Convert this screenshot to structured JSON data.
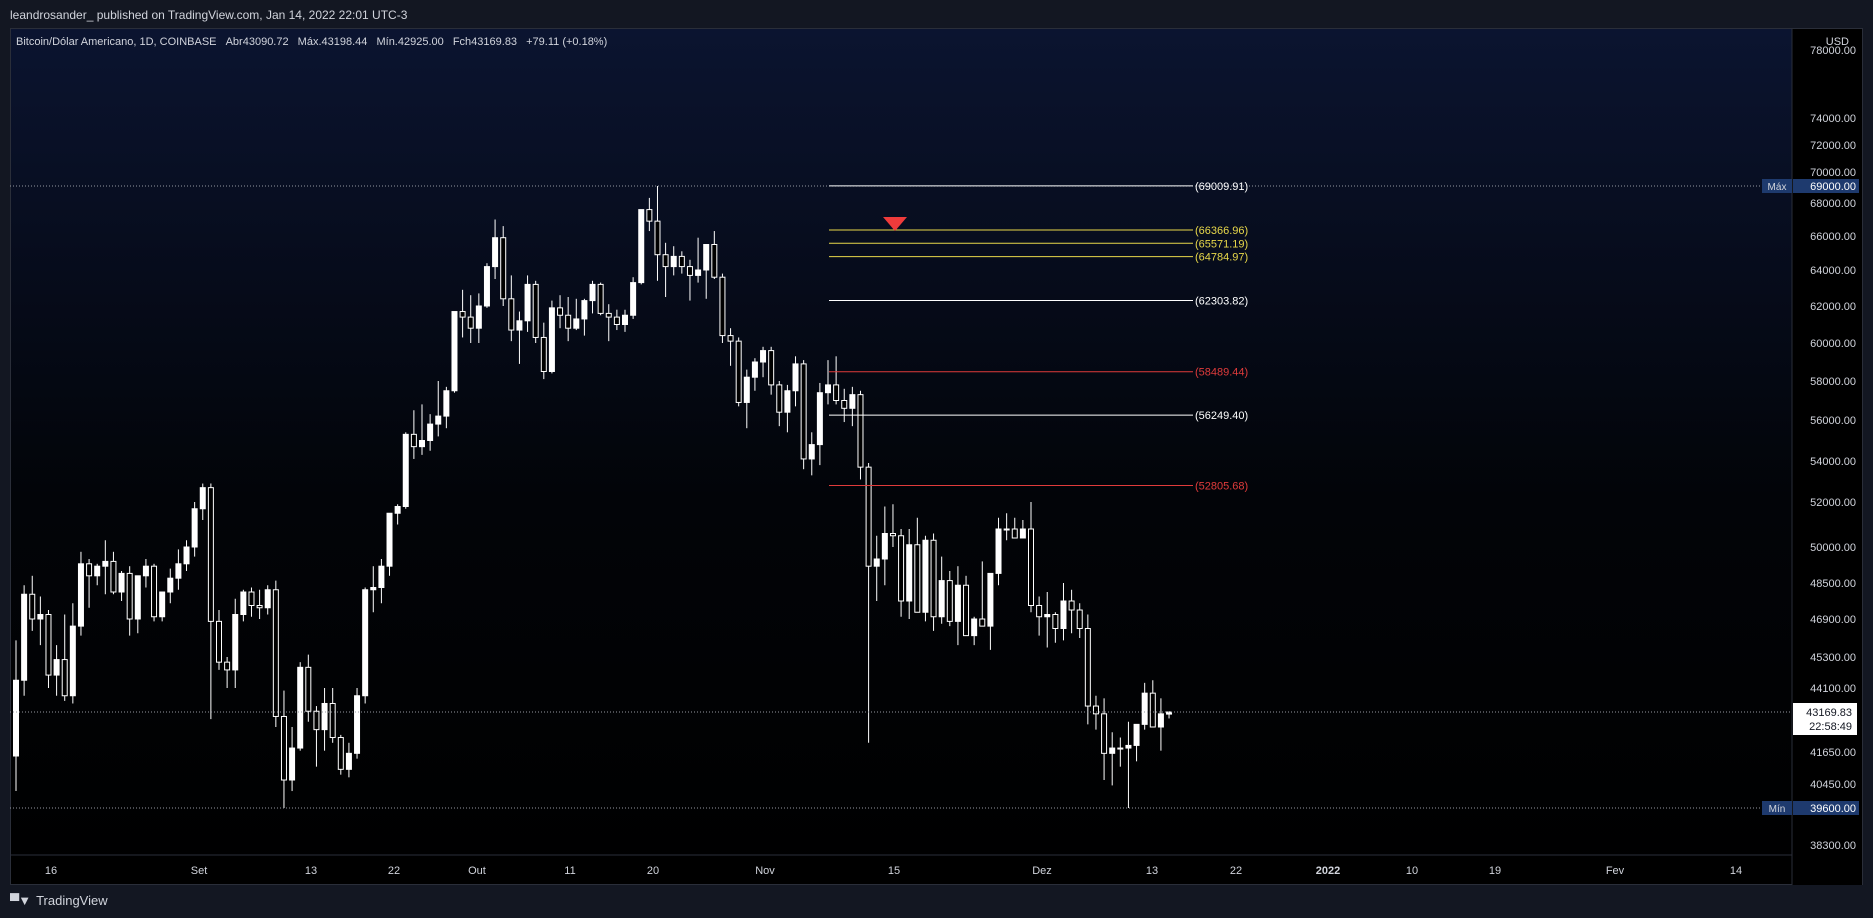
{
  "header": {
    "publish_line": "leandrosander_ published on TradingView.com, Jan 14, 2022 22:01 UTC-3"
  },
  "symbol": {
    "name": "Bitcoin/Dólar Americano, 1D, COINBASE",
    "open_label": "Abr",
    "open": "43090.72",
    "high_label": "Máx.",
    "high": "43198.44",
    "low_label": "Mín.",
    "low": "42925.00",
    "close_label": "Fch",
    "close": "43169.83",
    "change": "+79.11 (+0.18%)"
  },
  "price_axis": {
    "currency": "USD",
    "ticks": [
      "78000.00",
      "74000.00",
      "72000.00",
      "70000.00",
      "68000.00",
      "66000.00",
      "64000.00",
      "62000.00",
      "60000.00",
      "58000.00",
      "56000.00",
      "54000.00",
      "52000.00",
      "50000.00",
      "48500.00",
      "46900.00",
      "45300.00",
      "44100.00",
      "41650.00",
      "40450.00",
      "39600.00",
      "38300.00"
    ],
    "max_label": "Máx",
    "max_value": "69000.00",
    "min_label": "Mín",
    "min_value": "39600.00",
    "current_price": "43169.83",
    "countdown": "22:58:49"
  },
  "time_axis": {
    "labels": [
      "16",
      "Set",
      "13",
      "22",
      "Out",
      "11",
      "20",
      "Nov",
      "15",
      "Dez",
      "13",
      "22",
      "2022",
      "10",
      "19",
      "Fev",
      "14"
    ]
  },
  "colors": {
    "white_level": "#ffffff",
    "yellow_level": "#e8d84a",
    "red_level": "#e03b3b",
    "arrow": "#ef3b3b",
    "candle": "#ffffff"
  },
  "levels": [
    {
      "label": "(69009.91)",
      "price": 69009.91,
      "color": "white"
    },
    {
      "label": "(66366.96)",
      "price": 66366.96,
      "color": "yellow"
    },
    {
      "label": "(65571.19)",
      "price": 65571.19,
      "color": "yellow"
    },
    {
      "label": "(64784.97)",
      "price": 64784.97,
      "color": "yellow"
    },
    {
      "label": "(62303.82)",
      "price": 62303.82,
      "color": "white"
    },
    {
      "label": "(58489.44)",
      "price": 58489.44,
      "color": "red"
    },
    {
      "label": "(56249.40)",
      "price": 56249.4,
      "color": "white"
    },
    {
      "label": "(52805.68)",
      "price": 52805.68,
      "color": "red"
    }
  ],
  "footer": {
    "brand": "TradingView"
  }
}
